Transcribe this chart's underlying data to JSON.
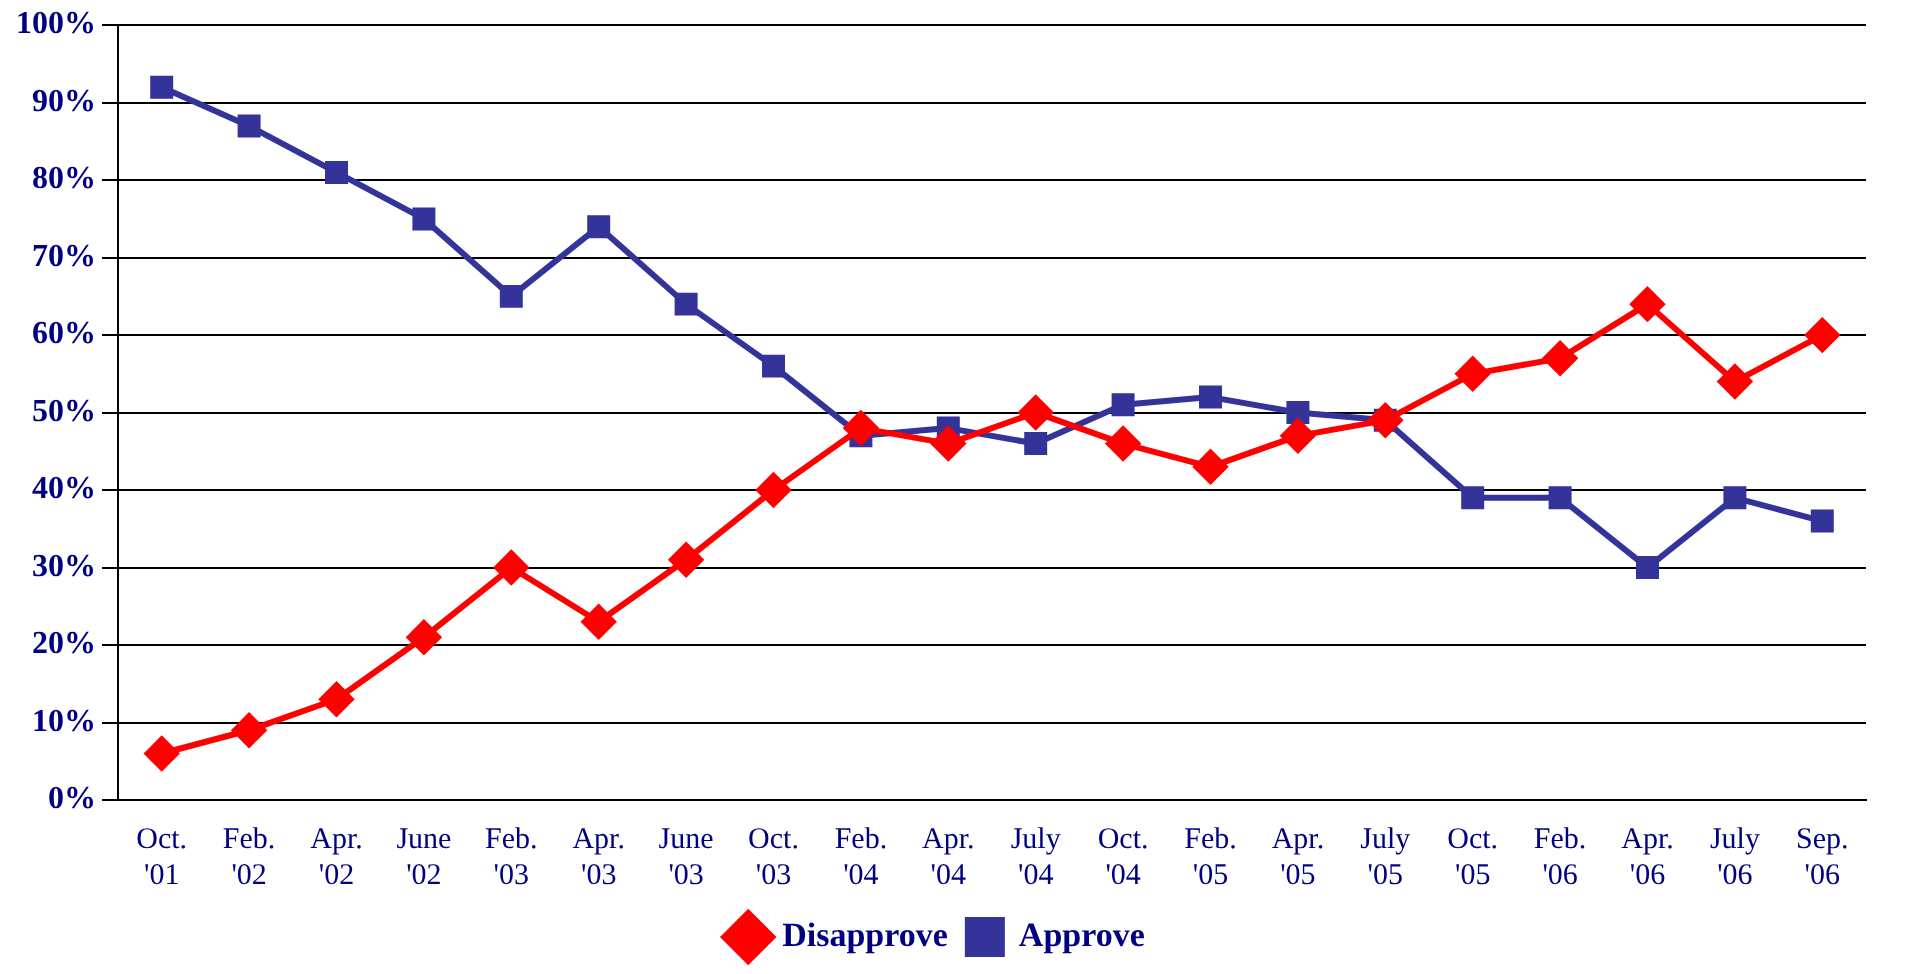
{
  "chart_data": {
    "type": "line",
    "categories": [
      "Oct.\n'01",
      "Feb.\n'02",
      "Apr.\n'02",
      "June\n'02",
      "Feb.\n'03",
      "Apr.\n'03",
      "June\n'03",
      "Oct.\n'03",
      "Feb.\n'04",
      "Apr.\n'04",
      "July\n'04",
      "Oct.\n'04",
      "Feb.\n'05",
      "Apr.\n'05",
      "July\n'05",
      "Oct.\n'05",
      "Feb.\n'06",
      "Apr.\n'06",
      "July\n'06",
      "Sep.\n'06"
    ],
    "series": [
      {
        "name": "Approve",
        "color": "#333399",
        "marker": "square",
        "values": [
          92,
          87,
          81,
          75,
          65,
          74,
          64,
          56,
          47,
          48,
          46,
          51,
          52,
          50,
          49,
          39,
          39,
          30,
          39,
          36
        ]
      },
      {
        "name": "Disapprove",
        "color": "#ff0000",
        "marker": "diamond",
        "values": [
          6,
          9,
          13,
          21,
          30,
          23,
          31,
          40,
          48,
          46,
          50,
          46,
          43,
          47,
          49,
          55,
          57,
          64,
          54,
          60
        ]
      }
    ],
    "ylim": [
      0,
      100
    ],
    "yticks": [
      {
        "value": 0,
        "label": "0%"
      },
      {
        "value": 10,
        "label": "10%"
      },
      {
        "value": 20,
        "label": "20%"
      },
      {
        "value": 30,
        "label": "30%"
      },
      {
        "value": 40,
        "label": "40%"
      },
      {
        "value": 50,
        "label": "50%"
      },
      {
        "value": 60,
        "label": "60%"
      },
      {
        "value": 70,
        "label": "70%"
      },
      {
        "value": 80,
        "label": "80%"
      },
      {
        "value": 90,
        "label": "90%"
      },
      {
        "value": 100,
        "label": "100%"
      }
    ],
    "grid": "y",
    "legend": "bottom",
    "line_style": "solid"
  }
}
